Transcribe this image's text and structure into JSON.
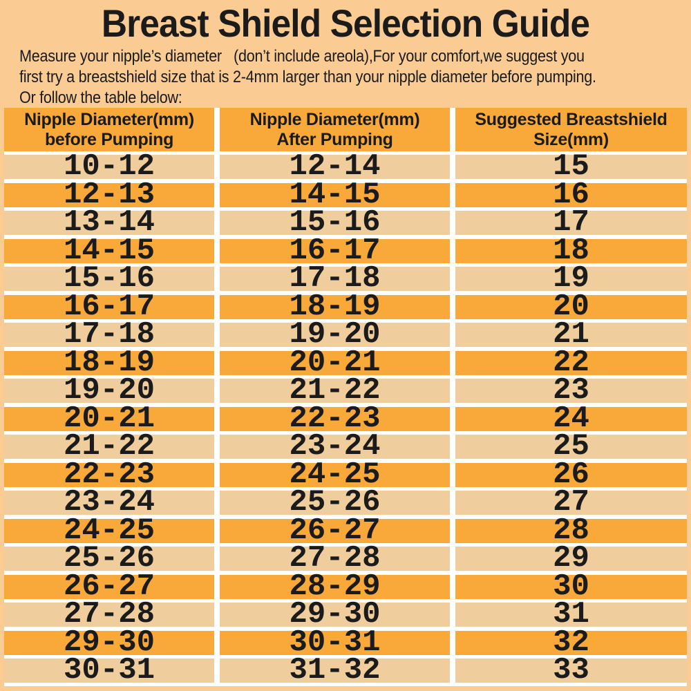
{
  "page": {
    "title": "Breast Shield Selection Guide",
    "intro_lines": [
      "Measure your nipple’s diameter   (don’t include areola),For your comfort,we suggest you",
      "first try a breastshield size that is 2-4mm larger than your nipple diameter before pumping.",
      "Or follow the table below:"
    ]
  },
  "colors": {
    "background": "#FACC93",
    "header_orange": "#F8A93A",
    "row_orange": "#F8A93A",
    "row_tan": "#EFCD9D",
    "gap_white": "#FFFFFF",
    "text": "#1B1B1B"
  },
  "table": {
    "headers": [
      {
        "line1": "Nipple Diameter(mm)",
        "line2": "before Pumping"
      },
      {
        "line1": "Nipple Diameter(mm)",
        "line2": "After Pumping"
      },
      {
        "line1": "Suggested Breastshield",
        "line2": "Size(mm)"
      }
    ],
    "rows": [
      {
        "before": "10-12",
        "after": "12-14",
        "size": "15"
      },
      {
        "before": "12-13",
        "after": "14-15",
        "size": "16"
      },
      {
        "before": "13-14",
        "after": "15-16",
        "size": "17"
      },
      {
        "before": "14-15",
        "after": "16-17",
        "size": "18"
      },
      {
        "before": "15-16",
        "after": "17-18",
        "size": "19"
      },
      {
        "before": "16-17",
        "after": "18-19",
        "size": "20"
      },
      {
        "before": "17-18",
        "after": "19-20",
        "size": "21"
      },
      {
        "before": "18-19",
        "after": "20-21",
        "size": "22"
      },
      {
        "before": "19-20",
        "after": "21-22",
        "size": "23"
      },
      {
        "before": "20-21",
        "after": "22-23",
        "size": "24"
      },
      {
        "before": "21-22",
        "after": "23-24",
        "size": "25"
      },
      {
        "before": "22-23",
        "after": "24-25",
        "size": "26"
      },
      {
        "before": "23-24",
        "after": "25-26",
        "size": "27"
      },
      {
        "before": "24-25",
        "after": "26-27",
        "size": "28"
      },
      {
        "before": "25-26",
        "after": "27-28",
        "size": "29"
      },
      {
        "before": "26-27",
        "after": "28-29",
        "size": "30"
      },
      {
        "before": "27-28",
        "after": "29-30",
        "size": "31"
      },
      {
        "before": "29-30",
        "after": "30-31",
        "size": "32"
      },
      {
        "before": "30-31",
        "after": "31-32",
        "size": "33"
      }
    ]
  }
}
